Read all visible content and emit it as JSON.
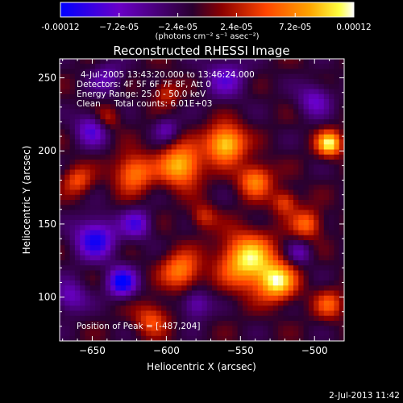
{
  "chart_data": {
    "type": "heatmap",
    "title": "Reconstructed RHESSI Image",
    "colorbar": {
      "tick_labels": [
        "-0.00012",
        "−7.2e-05",
        "−2.4e-05",
        "2.4e-05",
        "7.2e-05",
        "0.00012"
      ],
      "tick_values": [
        -0.00012,
        -7.2e-05,
        -2.4e-05,
        2.4e-05,
        7.2e-05,
        0.00012
      ],
      "range": [
        -0.00012,
        0.00012
      ],
      "units_label": "(photons cm⁻² s⁻¹ asec⁻²)",
      "colors": [
        "#0000ff",
        "#6a00c8",
        "#2a0030",
        "#8b0000",
        "#ff4500",
        "#ffa500",
        "#ffff40",
        "#ffffff"
      ]
    },
    "xlabel": "Heliocentric X (arcsec)",
    "ylabel": "Heliocentric Y (arcsec)",
    "xlim": [
      -672,
      -480
    ],
    "ylim": [
      70,
      263
    ],
    "x_ticks": [
      -650,
      -600,
      -550,
      -500
    ],
    "y_ticks": [
      100,
      150,
      200,
      250
    ],
    "annotations": [
      "4-Jul-2005 13:43:20.000 to 13:46:24.000",
      "Detectors: 4F 5F 6F 7F 8F, Att 0",
      "Energy Range: 25.0 - 50.0 keV",
      "Clean     Total counts: 6.01E+03"
    ],
    "peak_label": "Position of Peak = [-487,204]",
    "peak_position": [
      -487,
      204
    ],
    "footer_date": "2-Jul-2013 11:42"
  }
}
